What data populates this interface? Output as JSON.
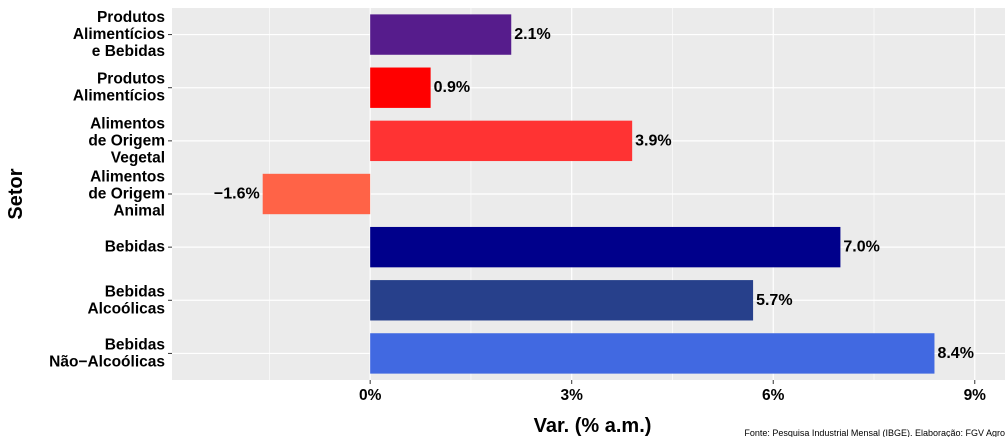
{
  "chart_data": {
    "type": "bar",
    "orientation": "horizontal",
    "categories": [
      [
        "Produtos",
        "Alimentícios",
        "e Bebidas"
      ],
      [
        "Produtos",
        "Alimentícios"
      ],
      [
        "Alimentos",
        "de Origem",
        "Vegetal"
      ],
      [
        "Alimentos",
        "de Origem",
        "Animal"
      ],
      [
        "Bebidas"
      ],
      [
        "Bebidas",
        "Alcoólicas"
      ],
      [
        "Bebidas",
        "Não−Alcoólicas"
      ]
    ],
    "values": [
      2.1,
      0.9,
      3.9,
      -1.6,
      7.0,
      5.7,
      8.4
    ],
    "data_labels": [
      "2.1%",
      "0.9%",
      "3.9%",
      "−1.6%",
      "7.0%",
      "5.7%",
      "8.4%"
    ],
    "colors": [
      "#561C8C",
      "#FF0000",
      "#FF3333",
      "#FF6347",
      "#00008B",
      "#27408B",
      "#4169E1"
    ],
    "xlim": [
      -2.95,
      9.45
    ],
    "x_ticks": [
      0,
      3,
      6,
      9
    ],
    "x_tick_labels": [
      "0%",
      "3%",
      "6%",
      "9%"
    ],
    "xlabel": "Var. (% a.m.)",
    "ylabel": "Setor",
    "grid": true,
    "panel_background": "#EBEBEB",
    "grid_color": "#FFFFFF",
    "legend": "none",
    "source_note": "Fonte: Pesquisa Industrial Mensal (IBGE). Elaboração: FGV Agro"
  }
}
